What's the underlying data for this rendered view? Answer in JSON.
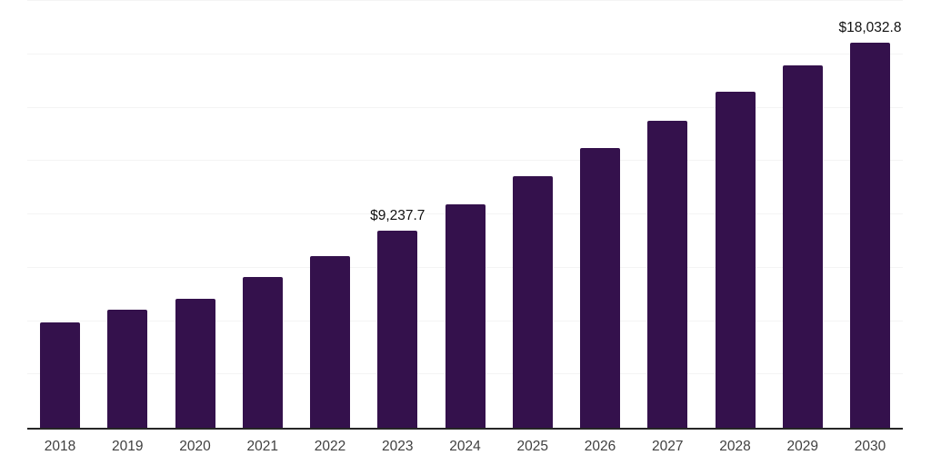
{
  "chart_data": {
    "type": "bar",
    "title": "",
    "xlabel": "",
    "ylabel": "",
    "categories": [
      "2018",
      "2019",
      "2020",
      "2021",
      "2022",
      "2023",
      "2024",
      "2025",
      "2026",
      "2027",
      "2028",
      "2029",
      "2030"
    ],
    "values": [
      4950,
      5540,
      6050,
      7070,
      8060,
      9237.7,
      10480,
      11780,
      13120,
      14400,
      15750,
      16990,
      18032.8
    ],
    "bar_labels": [
      "",
      "",
      "",
      "",
      "",
      "$9,237.7",
      "",
      "",
      "",
      "",
      "",
      "",
      "$18,032.8"
    ],
    "ylim": [
      0,
      20000
    ],
    "gridline_interval": 2500,
    "grid": true,
    "legend": "none",
    "y_axis_tick_labels_visible": false
  },
  "colors": {
    "bar": "#34114c",
    "axis_line": "#262626",
    "gridline": "#f4f4f4",
    "tick_label": "#404040",
    "data_label": "#111111",
    "background": "#ffffff"
  }
}
